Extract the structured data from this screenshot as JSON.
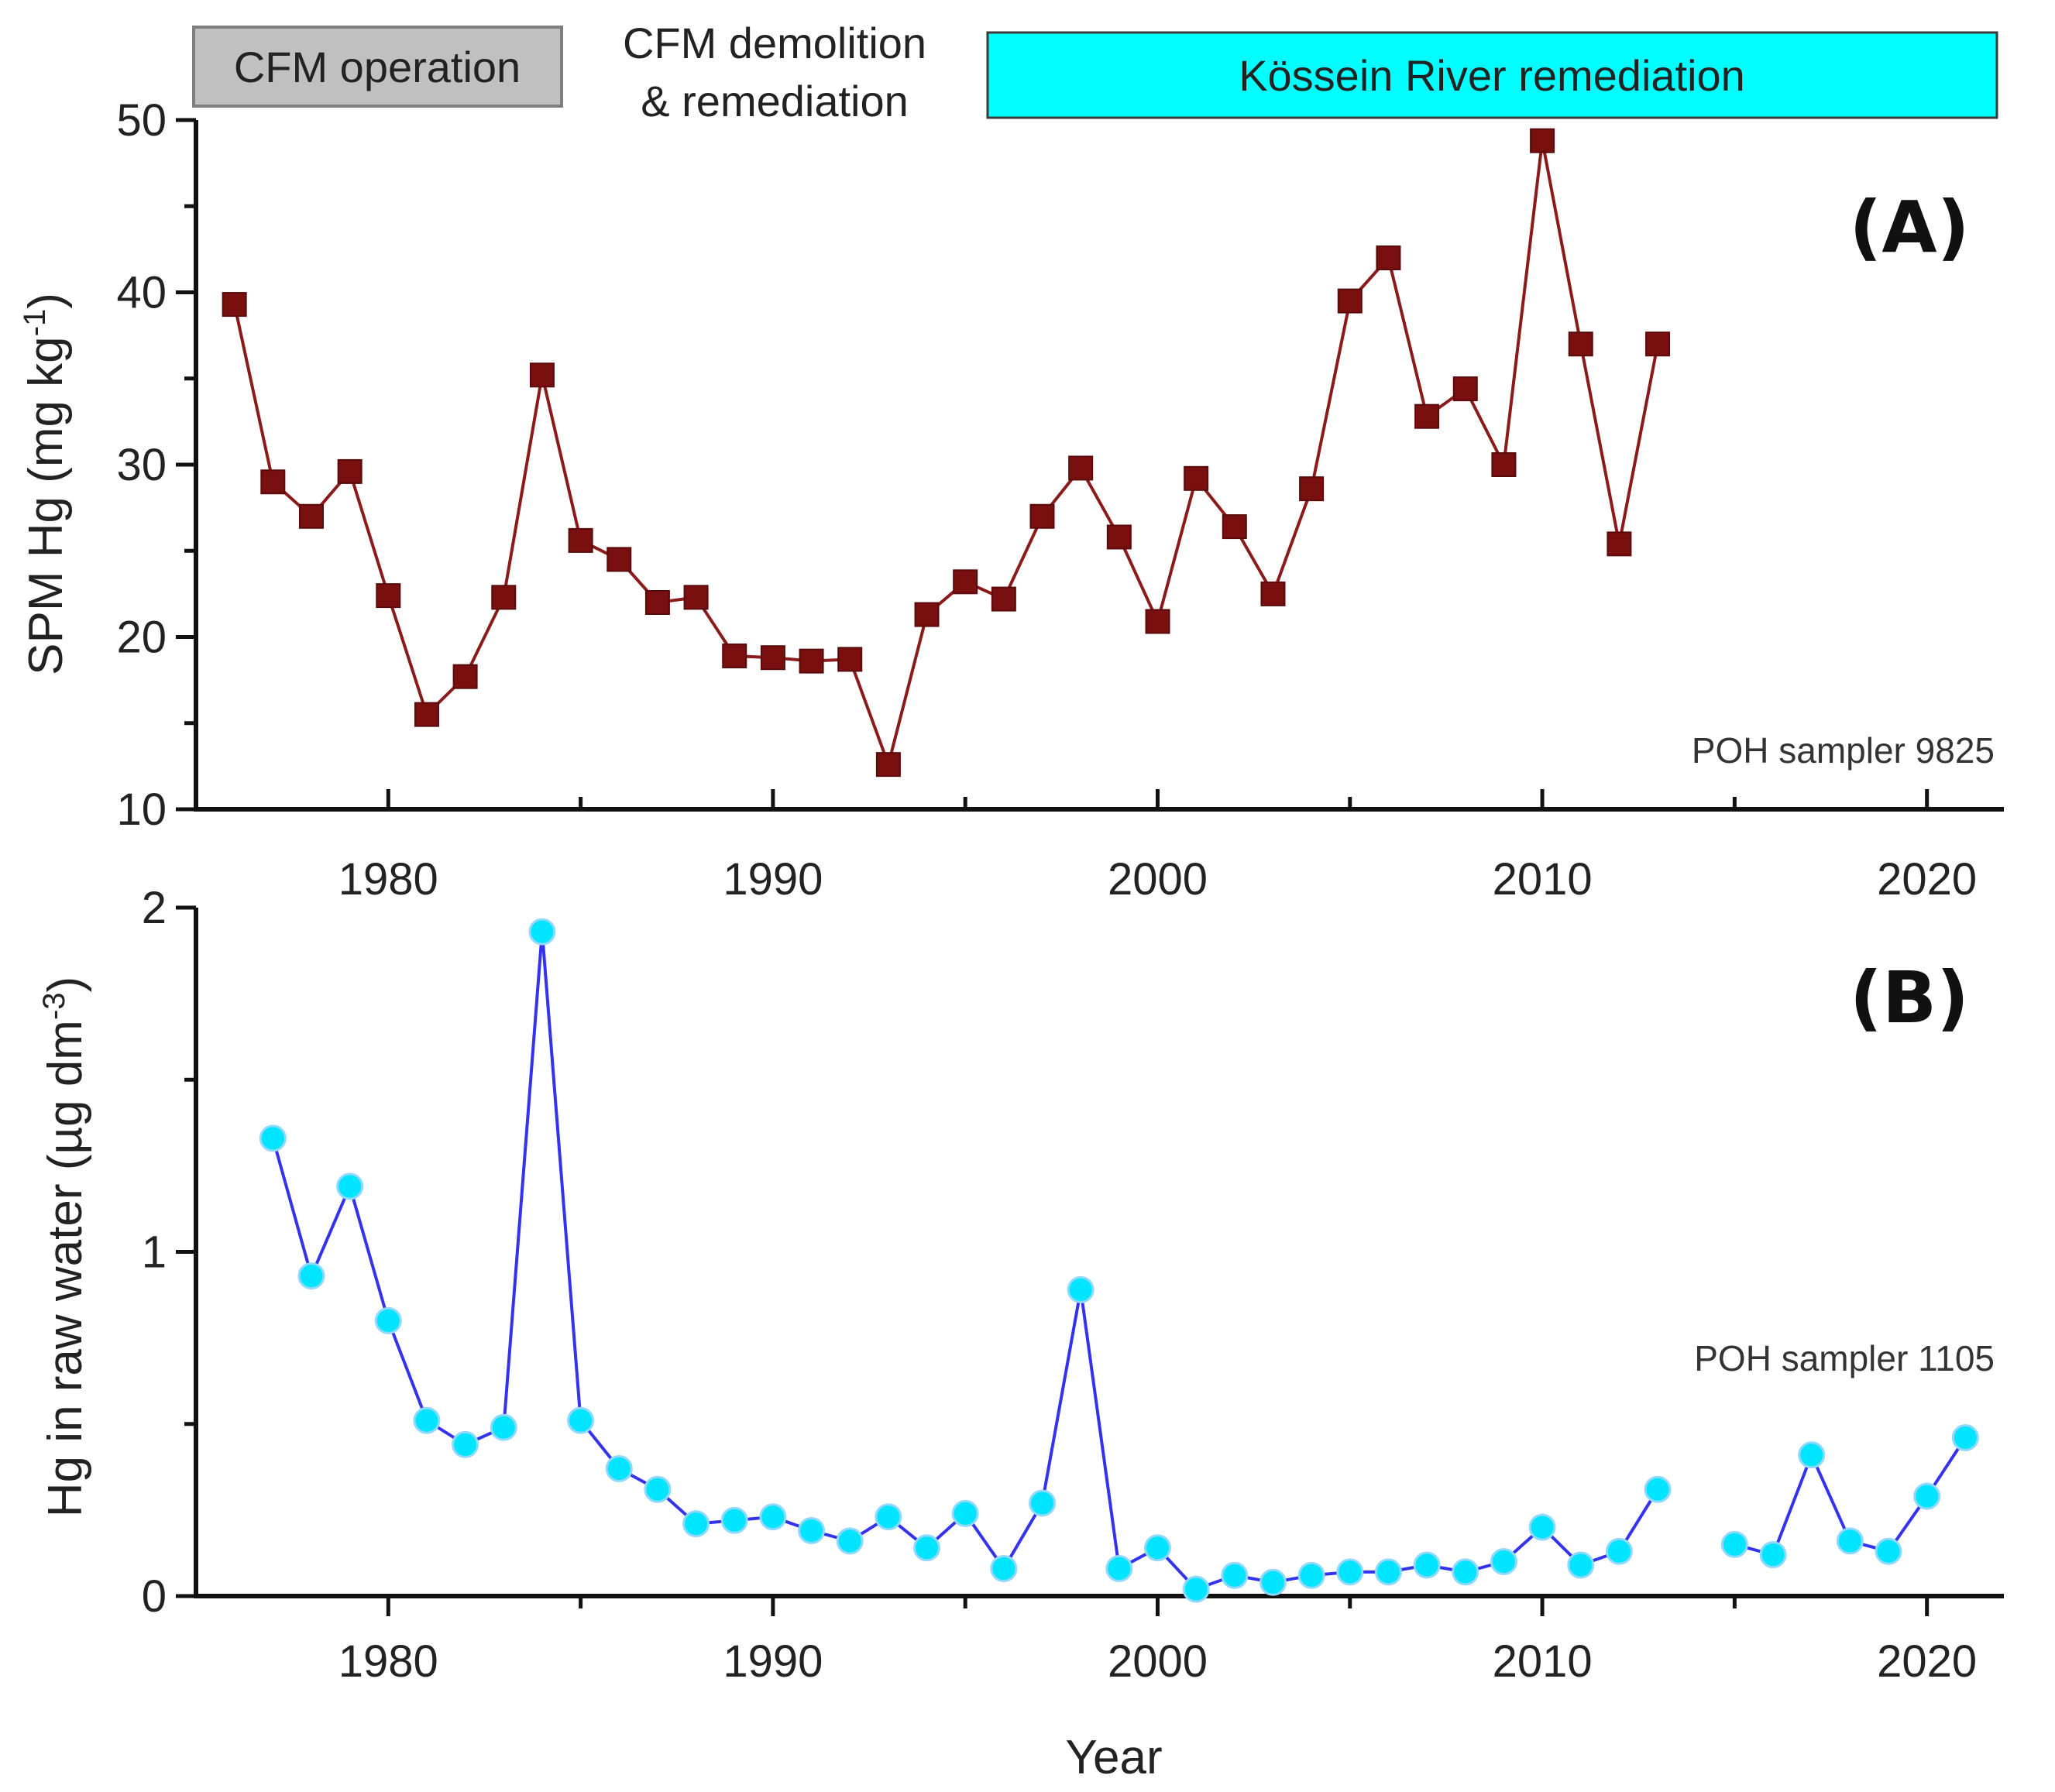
{
  "phases": {
    "cfm_operation": {
      "label": "CFM operation",
      "color": "#c0c0c0"
    },
    "cfm_demolition": {
      "line1": "CFM demolition",
      "line2": "& remediation"
    },
    "kossein": {
      "label": "Kössein River remediation",
      "color": "#00ffff"
    }
  },
  "xlabel": "Year",
  "chart_data": [
    {
      "type": "line",
      "panel": "(A)",
      "annotation": "POH sampler 9825",
      "ylabel": "SPM Hg (mg kg",
      "ylabel_sup": "-1",
      "ylabel_end": ")",
      "xlim": [
        1975,
        2022
      ],
      "ylim": [
        10,
        50
      ],
      "xticks": [
        1980,
        1990,
        2000,
        2010,
        2020
      ],
      "yticks": [
        10,
        20,
        30,
        40,
        50
      ],
      "marker": "square",
      "color": "#8b1a1a",
      "x": [
        1976,
        1977,
        1978,
        1979,
        1980,
        1981,
        1982,
        1983,
        1984,
        1985,
        1986,
        1987,
        1988,
        1989,
        1990,
        1991,
        1992,
        1993,
        1994,
        1995,
        1996,
        1997,
        1998,
        1999,
        2000,
        2001,
        2002,
        2003,
        2004,
        2005,
        2006,
        2007,
        2008,
        2009,
        2010,
        2011,
        2012,
        2013
      ],
      "y": [
        39.3,
        29.0,
        27.0,
        29.6,
        22.4,
        15.5,
        17.7,
        22.3,
        35.2,
        25.6,
        24.5,
        22.0,
        22.3,
        18.9,
        18.8,
        18.6,
        18.7,
        12.6,
        21.3,
        23.2,
        22.2,
        27.0,
        29.8,
        25.8,
        20.9,
        29.2,
        26.4,
        22.5,
        28.6,
        39.5,
        42.0,
        32.8,
        34.4,
        30.0,
        48.8,
        37.0,
        25.4,
        37.0
      ]
    },
    {
      "type": "line",
      "panel": "(B)",
      "annotation": "POH sampler 1105",
      "ylabel": "Hg in raw water (µg dm",
      "ylabel_sup": "-3",
      "ylabel_end": ")",
      "xlim": [
        1975,
        2022
      ],
      "ylim": [
        0,
        2
      ],
      "xticks": [
        1980,
        1990,
        2000,
        2010,
        2020
      ],
      "yticks": [
        0,
        1,
        2
      ],
      "marker": "circle",
      "color": "#3333ee",
      "marker_fill": "#00e5ff",
      "segments": [
        {
          "x": [
            1977,
            1978,
            1979,
            1980,
            1981,
            1982,
            1983,
            1984,
            1985,
            1986,
            1987,
            1988,
            1989,
            1990,
            1991,
            1992,
            1993,
            1994,
            1995,
            1996,
            1997,
            1998,
            1999,
            2000,
            2001,
            2002,
            2003,
            2004,
            2005,
            2006,
            2007,
            2008,
            2009,
            2010,
            2011,
            2012,
            2013
          ],
          "y": [
            1.33,
            0.93,
            1.19,
            0.8,
            0.51,
            0.44,
            0.49,
            1.93,
            0.51,
            0.37,
            0.31,
            0.21,
            0.22,
            0.23,
            0.19,
            0.16,
            0.23,
            0.14,
            0.24,
            0.08,
            0.27,
            0.89,
            0.08,
            0.14,
            0.02,
            0.06,
            0.04,
            0.06,
            0.07,
            0.07,
            0.09,
            0.07,
            0.1,
            0.2,
            0.09,
            0.13,
            0.31
          ]
        },
        {
          "x": [
            2015,
            2016,
            2017,
            2018,
            2019,
            2020,
            2021
          ],
          "y": [
            0.15,
            0.12,
            0.41,
            0.16,
            0.13,
            0.29,
            0.46
          ]
        }
      ]
    }
  ]
}
